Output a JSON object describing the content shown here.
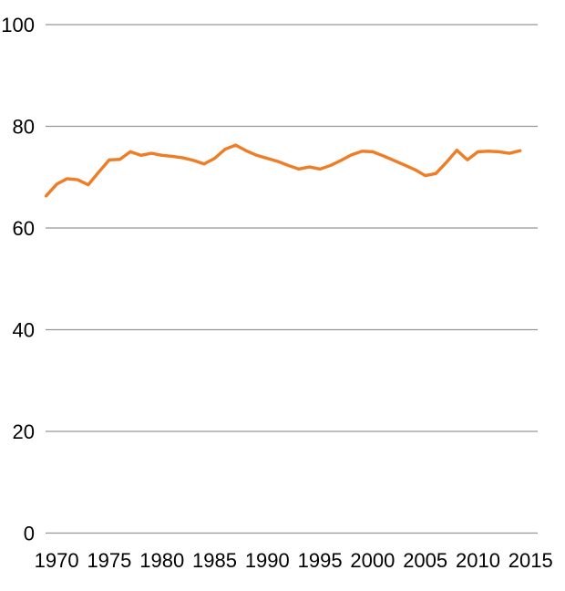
{
  "chart_data": {
    "type": "line",
    "title": "",
    "xlabel": "",
    "ylabel": "",
    "legend": "none",
    "grid": "horizontal-only",
    "background": "#ffffff",
    "xlim": [
      1968.95,
      2015.67
    ],
    "ylim": [
      0,
      100
    ],
    "x_tick_values": [
      1970,
      1975,
      1980,
      1985,
      1990,
      1995,
      2000,
      2005,
      2010,
      2015
    ],
    "x_tick_labels": [
      "1970",
      "1975",
      "1980",
      "1985",
      "1990",
      "1995",
      "2000",
      "2005",
      "2010",
      "2015"
    ],
    "y_tick_values": [
      0,
      20,
      40,
      60,
      80,
      100
    ],
    "y_tick_labels": [
      "0",
      "20",
      "40",
      "60",
      "80",
      "100"
    ],
    "x": [
      1969,
      1970,
      1971,
      1972,
      1973,
      1974,
      1975,
      1976,
      1977,
      1978,
      1979,
      1980,
      1981,
      1982,
      1983,
      1984,
      1985,
      1986,
      1987,
      1988,
      1989,
      1990,
      1991,
      1992,
      1993,
      1994,
      1995,
      1996,
      1997,
      1998,
      1999,
      2000,
      2001,
      2002,
      2003,
      2004,
      2005,
      2006,
      2007,
      2008,
      2009,
      2010,
      2011,
      2012,
      2013,
      2014
    ],
    "series": [
      {
        "name": "rate",
        "color": "#EF7D25",
        "values": [
          66.3,
          68.6,
          69.7,
          69.5,
          68.5,
          71.0,
          73.4,
          73.5,
          75.0,
          74.3,
          74.7,
          74.3,
          74.1,
          73.8,
          73.3,
          72.6,
          73.7,
          75.5,
          76.3,
          75.2,
          74.3,
          73.7,
          73.1,
          72.3,
          71.6,
          72.0,
          71.6,
          72.3,
          73.3,
          74.4,
          75.1,
          75.0,
          74.2,
          73.3,
          72.4,
          71.5,
          70.3,
          70.7,
          72.9,
          75.3,
          73.4,
          75.0,
          75.1,
          75.0,
          74.7,
          75.2
        ]
      }
    ]
  },
  "colors": {
    "line": "#EF7D25",
    "gridline": "#969696",
    "axis_text": "#000000",
    "background": "#ffffff"
  }
}
